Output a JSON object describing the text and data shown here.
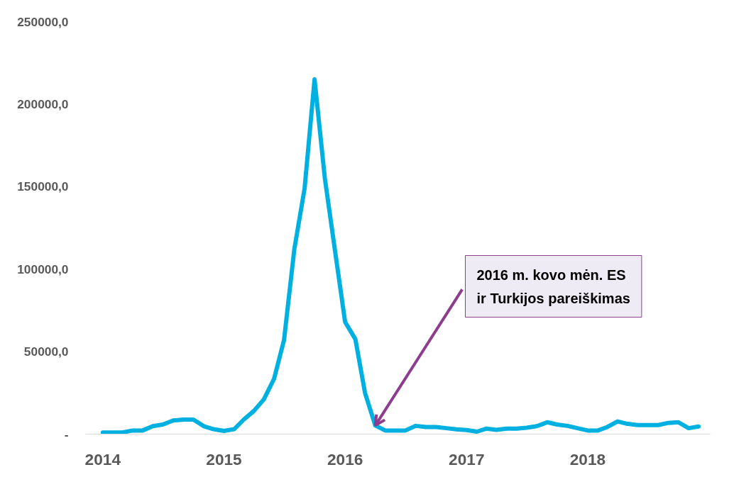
{
  "chart_data": {
    "type": "line",
    "x": [
      "2014-01",
      "2014-02",
      "2014-03",
      "2014-04",
      "2014-05",
      "2014-06",
      "2014-07",
      "2014-08",
      "2014-09",
      "2014-10",
      "2014-11",
      "2014-12",
      "2015-01",
      "2015-02",
      "2015-03",
      "2015-04",
      "2015-05",
      "2015-06",
      "2015-07",
      "2015-08",
      "2015-09",
      "2015-10",
      "2015-11",
      "2015-12",
      "2016-01",
      "2016-02",
      "2016-03",
      "2016-04",
      "2016-05",
      "2016-06",
      "2016-07",
      "2016-08",
      "2016-09",
      "2016-10",
      "2016-11",
      "2016-12",
      "2017-01",
      "2017-02",
      "2017-03",
      "2017-04",
      "2017-05",
      "2017-06",
      "2017-07",
      "2017-08",
      "2017-09",
      "2017-10",
      "2017-11",
      "2017-12",
      "2018-01",
      "2018-02",
      "2018-03",
      "2018-04",
      "2018-05",
      "2018-06",
      "2018-07",
      "2018-08",
      "2018-09",
      "2018-10",
      "2018-11",
      "2018-12"
    ],
    "series": [
      {
        "color": "#00b0e0",
        "values": [
          1000,
          1000,
          1000,
          2200,
          2200,
          4800,
          5800,
          8300,
          8800,
          8800,
          4800,
          3000,
          1900,
          3000,
          8700,
          14000,
          21000,
          33500,
          57000,
          112000,
          149000,
          215000,
          155000,
          112000,
          68000,
          57500,
          25000,
          5200,
          2200,
          2200,
          2200,
          5000,
          4300,
          4300,
          3600,
          2900,
          2500,
          1500,
          3300,
          2600,
          3300,
          3300,
          3900,
          4800,
          7200,
          5800,
          5000,
          3600,
          2200,
          2200,
          4300,
          7700,
          6200,
          5500,
          5500,
          5500,
          6800,
          7200,
          3600,
          4600
        ]
      }
    ],
    "xlim": [
      "2013-11-10",
      "2019-01-05"
    ],
    "xticks": [
      {
        "value": "2014-01",
        "label": "2014"
      },
      {
        "value": "2015-01",
        "label": "2015"
      },
      {
        "value": "2016-01",
        "label": "2016"
      },
      {
        "value": "2017-01",
        "label": "2017"
      },
      {
        "value": "2018-01",
        "label": "2018"
      }
    ],
    "ylim": [
      0,
      250000
    ],
    "yticks": [
      {
        "value": 0,
        "label": "-"
      },
      {
        "value": 50000,
        "label": "50000,0"
      },
      {
        "value": 100000,
        "label": "100000,0"
      },
      {
        "value": 150000,
        "label": "150000,0"
      },
      {
        "value": 200000,
        "label": "200000,0"
      },
      {
        "value": 250000,
        "label": "250000,0"
      }
    ],
    "grid": false,
    "marker": "none",
    "line_style": "solid",
    "annotations": [
      {
        "text": "2016 m. kovo mėn. ES\nir Turkijos pareiškimas",
        "x": "2016-04",
        "y": 5200
      }
    ]
  }
}
